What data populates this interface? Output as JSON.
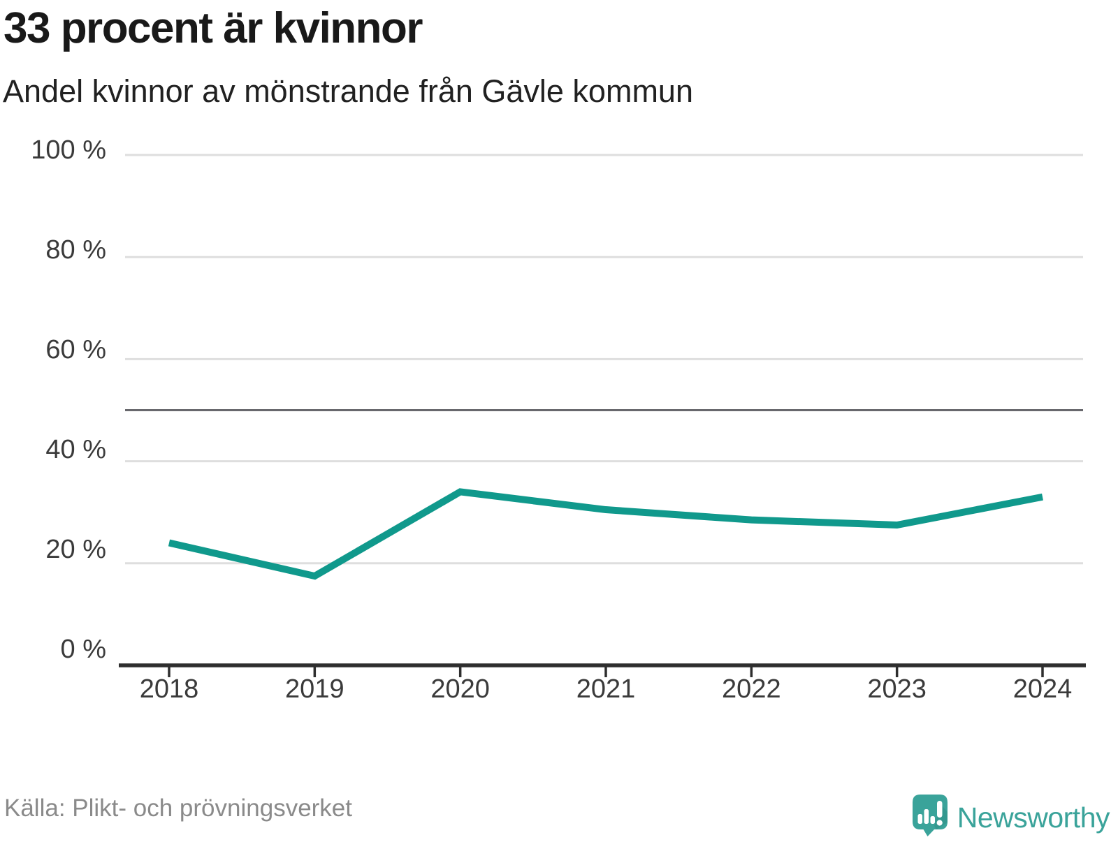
{
  "header": {
    "title": "33 procent är kvinnor",
    "subtitle": "Andel kvinnor av mönstrande från Gävle kommun"
  },
  "footer": {
    "source": "Källa: Plikt- och prövningsverket",
    "brand": {
      "name": "Newsworthy",
      "icon": "speech-bubble-bar-chart-icon"
    }
  },
  "colors": {
    "line": "#10998c",
    "grid": "#dedede",
    "reference_line": "#68686d",
    "axis": "#2e2e2e",
    "tick_label": "#3a3a3a",
    "source_text": "#8a8a8a",
    "brand_teal": "#3aa39a",
    "brand_teal_dark": "#2e8f87",
    "title_text": "#191919"
  },
  "chart_data": {
    "type": "line",
    "title": "33 procent är kvinnor",
    "subtitle": "Andel kvinnor av mönstrande från Gävle kommun",
    "categories": [
      "2018",
      "2019",
      "2020",
      "2021",
      "2022",
      "2023",
      "2024"
    ],
    "series": [
      {
        "name": "Andel kvinnor av mönstrande",
        "values": [
          24,
          17.5,
          34,
          30.5,
          28.5,
          27.5,
          33
        ]
      }
    ],
    "unit": "%",
    "ylim": [
      0,
      100
    ],
    "yticks": [
      0,
      20,
      40,
      60,
      80,
      100
    ],
    "ytick_labels": [
      "0 %",
      "20 %",
      "40 %",
      "60 %",
      "80 %",
      "100 %"
    ],
    "reference_line": 50,
    "grid": true,
    "legend": false,
    "xlabel": "",
    "ylabel": ""
  }
}
